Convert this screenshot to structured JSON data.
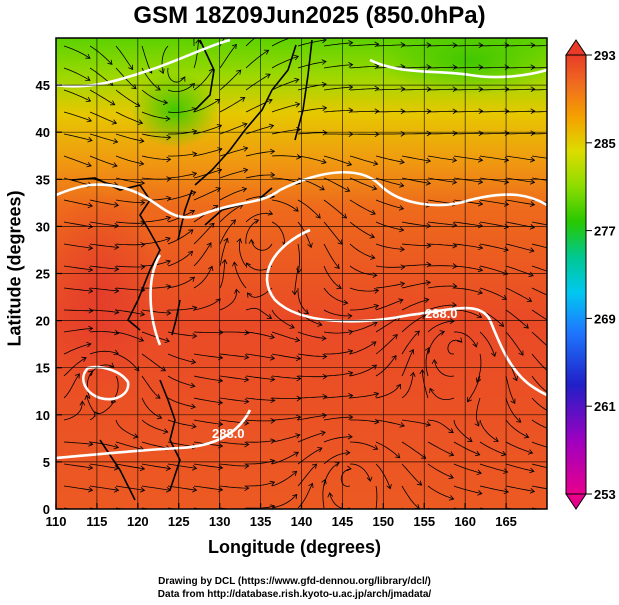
{
  "title": "GSM 18Z09Jun2025 (850.0hPa)",
  "axes": {
    "xlabel": "Longitude (degrees)",
    "ylabel": "Latitude  (degrees)",
    "x_ticks": [
      "110",
      "115",
      "120",
      "125",
      "130",
      "135",
      "140",
      "145",
      "150",
      "155",
      "160",
      "165"
    ],
    "y_ticks": [
      "0",
      "5",
      "10",
      "15",
      "20",
      "25",
      "30",
      "35",
      "40",
      "45"
    ],
    "x_range": [
      110,
      170
    ],
    "y_range": [
      0,
      50
    ]
  },
  "colorbar": {
    "ticks": [
      "293",
      "285",
      "277",
      "269",
      "261",
      "253"
    ],
    "range": [
      253,
      293
    ],
    "colors": [
      "#e8008c",
      "#a000c0",
      "#2020c8",
      "#1e78ff",
      "#00c8f0",
      "#00c890",
      "#28c800",
      "#8cdc00",
      "#dcdc00",
      "#f5a000",
      "#f06e1e",
      "#e83c28"
    ]
  },
  "contour_labels": [
    "288.0",
    "288.0"
  ],
  "credits": {
    "line1": "Drawing by DCL (https://www.gfd-dennou.org/library/dcl/)",
    "line2": "Data from http://database.rish.kyoto-u.ac.jp/arch/jmadata/"
  }
}
